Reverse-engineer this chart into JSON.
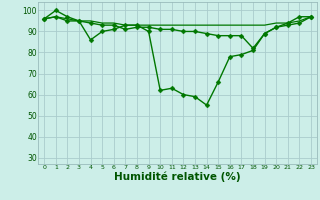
{
  "background_color": "#cceee8",
  "grid_color": "#aacccc",
  "line_color": "#007700",
  "marker_color": "#007700",
  "xlabel": "Humidité relative (%)",
  "xlabel_fontsize": 7.5,
  "ylabel_values": [
    30,
    40,
    50,
    60,
    70,
    80,
    90,
    100
  ],
  "xlim": [
    -0.5,
    23.5
  ],
  "ylim": [
    27,
    104
  ],
  "series": [
    {
      "name": "main_zigzag",
      "x": [
        0,
        1,
        2,
        3,
        4,
        5,
        6,
        7,
        8,
        9,
        10,
        11,
        12,
        13,
        14,
        15,
        16,
        17,
        18,
        19,
        20,
        21,
        22,
        23
      ],
      "y": [
        96,
        100,
        97,
        95,
        86,
        90,
        91,
        93,
        93,
        90,
        62,
        63,
        60,
        59,
        55,
        66,
        78,
        79,
        81,
        89,
        92,
        94,
        97,
        97
      ],
      "has_marker": true,
      "marker_size": 2.5,
      "linewidth": 1.0
    },
    {
      "name": "mid_slope",
      "x": [
        0,
        1,
        2,
        3,
        4,
        5,
        6,
        7,
        8,
        9,
        10,
        11,
        12,
        13,
        14,
        15,
        16,
        17,
        18,
        19,
        20,
        21,
        22,
        23
      ],
      "y": [
        96,
        97,
        95,
        95,
        94,
        93,
        93,
        91,
        92,
        92,
        91,
        91,
        90,
        90,
        89,
        88,
        88,
        88,
        82,
        89,
        92,
        93,
        94,
        97
      ],
      "has_marker": true,
      "marker_size": 2.5,
      "linewidth": 1.0
    },
    {
      "name": "top_flat",
      "x": [
        0,
        1,
        2,
        3,
        4,
        5,
        6,
        7,
        8,
        9,
        10,
        11,
        12,
        13,
        14,
        15,
        16,
        17,
        18,
        19,
        20,
        21,
        22,
        23
      ],
      "y": [
        96,
        97,
        96,
        95,
        95,
        94,
        94,
        93,
        93,
        93,
        93,
        93,
        93,
        93,
        93,
        93,
        93,
        93,
        93,
        93,
        94,
        94,
        95,
        97
      ],
      "has_marker": false,
      "marker_size": 0,
      "linewidth": 0.9
    }
  ]
}
